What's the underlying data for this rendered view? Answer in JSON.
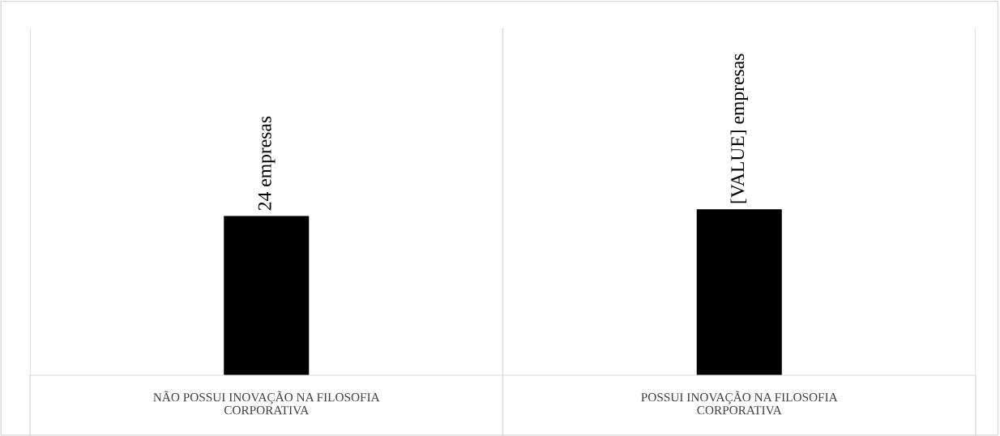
{
  "chart_data": {
    "type": "bar",
    "categories": [
      "NÃO POSSUI INOVAÇÃO NA FILOSOFIA\nCORPORATIVA",
      "POSSUI INOVAÇÃO NA FILOSOFIA\nCORPORATIVA"
    ],
    "values": [
      24,
      25
    ],
    "value_labels": [
      "24 empresas",
      "[VALUE] empresas"
    ],
    "color": "#000000",
    "grid": "x"
  }
}
